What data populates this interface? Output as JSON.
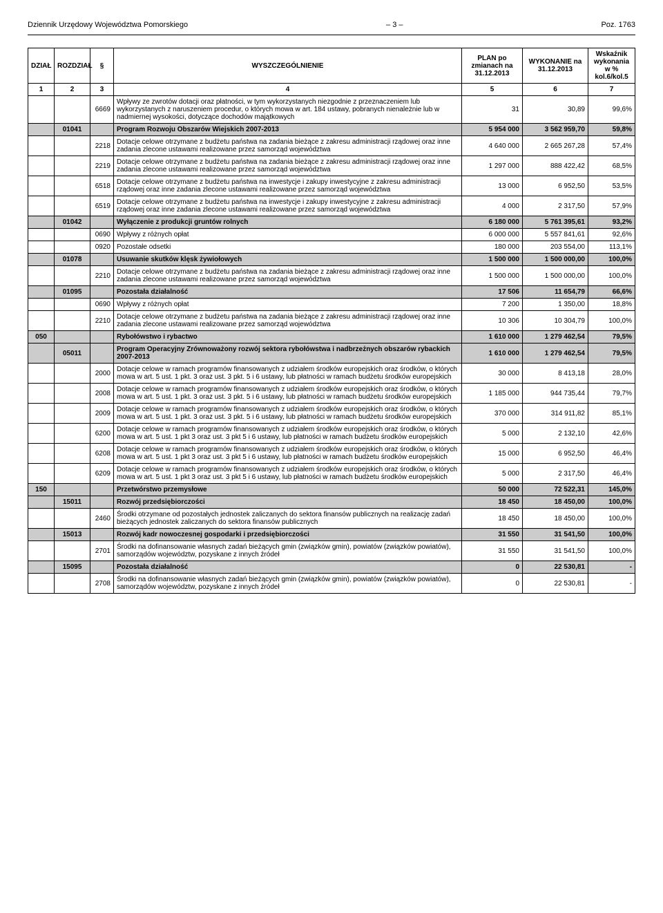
{
  "header": {
    "left": "Dziennik Urzędowy Województwa Pomorskiego",
    "center": "– 3 –",
    "right": "Poz. 1763"
  },
  "table": {
    "headers": {
      "dzial": "DZIAŁ",
      "rozdzial": "ROZDZIAŁ",
      "par": "§",
      "wysz": "WYSZCZEGÓLNIENIE",
      "plan": "PLAN po zmianach na 31.12.2013",
      "wyk": "WYKONANIE na 31.12.2013",
      "wsk": "Wskaźnik wykonania w % kol.6/kol.5"
    },
    "subhead": [
      "1",
      "2",
      "3",
      "4",
      "5",
      "6",
      "7"
    ],
    "rows": [
      {
        "dzial": "",
        "rozdzial": "",
        "par": "6669",
        "desc": "Wpływy ze zwrotów dotacji oraz płatności, w tym wykorzystanych niezgodnie z przeznaczeniem lub wykorzystanych z naruszeniem procedur, o których mowa w art. 184 ustawy, pobranych nienależnie lub w nadmiernej wysokości, dotyczące dochodów majątkowych",
        "plan": "31",
        "wyk": "30,89",
        "wsk": "99,6%",
        "shade": false,
        "bold": false
      },
      {
        "dzial": "",
        "rozdzial": "01041",
        "par": "",
        "desc": "Program Rozwoju Obszarów Wiejskich 2007-2013",
        "plan": "5 954 000",
        "wyk": "3 562 959,70",
        "wsk": "59,8%",
        "shade": true,
        "bold": true
      },
      {
        "dzial": "",
        "rozdzial": "",
        "par": "2218",
        "desc": "Dotacje celowe otrzymane z budżetu państwa na zadania bieżące z zakresu administracji rządowej oraz inne zadania zlecone ustawami realizowane przez samorząd województwa",
        "plan": "4 640 000",
        "wyk": "2 665 267,28",
        "wsk": "57,4%",
        "shade": false,
        "bold": false
      },
      {
        "dzial": "",
        "rozdzial": "",
        "par": "2219",
        "desc": "Dotacje celowe otrzymane z budżetu państwa na zadania bieżące z zakresu administracji rządowej oraz inne zadania zlecone ustawami realizowane przez samorząd województwa",
        "plan": "1 297 000",
        "wyk": "888 422,42",
        "wsk": "68,5%",
        "shade": false,
        "bold": false
      },
      {
        "dzial": "",
        "rozdzial": "",
        "par": "6518",
        "desc": "Dotacje celowe otrzymane z budżetu państwa na inwestycje i zakupy inwestycyjne z zakresu administracji rządowej oraz inne zadania zlecone ustawami realizowane przez samorząd województwa",
        "plan": "13 000",
        "wyk": "6 952,50",
        "wsk": "53,5%",
        "shade": false,
        "bold": false
      },
      {
        "dzial": "",
        "rozdzial": "",
        "par": "6519",
        "desc": "Dotacje celowe otrzymane z budżetu państwa na inwestycje i zakupy inwestycyjne z zakresu administracji rządowej oraz inne zadania zlecone ustawami realizowane przez samorząd województwa",
        "plan": "4 000",
        "wyk": "2 317,50",
        "wsk": "57,9%",
        "shade": false,
        "bold": false
      },
      {
        "dzial": "",
        "rozdzial": "01042",
        "par": "",
        "desc": "Wyłączenie z produkcji gruntów rolnych",
        "plan": "6 180 000",
        "wyk": "5 761 395,61",
        "wsk": "93,2%",
        "shade": true,
        "bold": true
      },
      {
        "dzial": "",
        "rozdzial": "",
        "par": "0690",
        "desc": "Wpływy z różnych opłat",
        "plan": "6 000 000",
        "wyk": "5 557 841,61",
        "wsk": "92,6%",
        "shade": false,
        "bold": false
      },
      {
        "dzial": "",
        "rozdzial": "",
        "par": "0920",
        "desc": "Pozostałe odsetki",
        "plan": "180 000",
        "wyk": "203 554,00",
        "wsk": "113,1%",
        "shade": false,
        "bold": false
      },
      {
        "dzial": "",
        "rozdzial": "01078",
        "par": "",
        "desc": "Usuwanie skutków klęsk żywiołowych",
        "plan": "1 500 000",
        "wyk": "1 500 000,00",
        "wsk": "100,0%",
        "shade": true,
        "bold": true
      },
      {
        "dzial": "",
        "rozdzial": "",
        "par": "2210",
        "desc": "Dotacje celowe otrzymane z budżetu państwa na zadania bieżące z zakresu administracji rządowej oraz inne zadania zlecone ustawami realizowane przez samorząd województwa",
        "plan": "1 500 000",
        "wyk": "1 500 000,00",
        "wsk": "100,0%",
        "shade": false,
        "bold": false
      },
      {
        "dzial": "",
        "rozdzial": "01095",
        "par": "",
        "desc": "Pozostała działalność",
        "plan": "17 506",
        "wyk": "11 654,79",
        "wsk": "66,6%",
        "shade": true,
        "bold": true
      },
      {
        "dzial": "",
        "rozdzial": "",
        "par": "0690",
        "desc": "Wpływy z różnych opłat",
        "plan": "7 200",
        "wyk": "1 350,00",
        "wsk": "18,8%",
        "shade": false,
        "bold": false
      },
      {
        "dzial": "",
        "rozdzial": "",
        "par": "2210",
        "desc": "Dotacje celowe otrzymane z budżetu państwa na zadania bieżące z zakresu administracji rządowej oraz inne zadania zlecone ustawami realizowane przez samorząd województwa",
        "plan": "10 306",
        "wyk": "10 304,79",
        "wsk": "100,0%",
        "shade": false,
        "bold": false
      },
      {
        "dzial": "050",
        "rozdzial": "",
        "par": "",
        "desc": "Rybołówstwo i rybactwo",
        "plan": "1 610 000",
        "wyk": "1 279 462,54",
        "wsk": "79,5%",
        "shade": true,
        "bold": true
      },
      {
        "dzial": "",
        "rozdzial": "05011",
        "par": "",
        "desc": "Program Operacyjny Zrównoważony rozwój sektora rybołówstwa i nadbrzeżnych obszarów rybackich 2007-2013",
        "plan": "1 610 000",
        "wyk": "1 279 462,54",
        "wsk": "79,5%",
        "shade": true,
        "bold": true
      },
      {
        "dzial": "",
        "rozdzial": "",
        "par": "2000",
        "desc": "Dotacje celowe w ramach programów finansowanych z udziałem środków europejskich oraz środków, o których mowa w art. 5 ust. 1 pkt. 3 oraz ust. 3 pkt. 5 i 6 ustawy, lub płatności w ramach budżetu środków europejskich",
        "plan": "30 000",
        "wyk": "8 413,18",
        "wsk": "28,0%",
        "shade": false,
        "bold": false
      },
      {
        "dzial": "",
        "rozdzial": "",
        "par": "2008",
        "desc": "Dotacje celowe w ramach programów finansowanych z udziałem środków europejskich oraz środków, o których mowa w art. 5 ust. 1 pkt. 3 oraz ust. 3 pkt. 5 i 6 ustawy, lub płatności w ramach budżetu środków europejskich",
        "plan": "1 185 000",
        "wyk": "944 735,44",
        "wsk": "79,7%",
        "shade": false,
        "bold": false
      },
      {
        "dzial": "",
        "rozdzial": "",
        "par": "2009",
        "desc": "Dotacje celowe w ramach programów finansowanych z udziałem środków europejskich oraz środków, o których mowa w art. 5 ust. 1 pkt. 3 oraz ust. 3 pkt. 5 i 6 ustawy, lub płatności w ramach budżetu środków europejskich",
        "plan": "370 000",
        "wyk": "314 911,82",
        "wsk": "85,1%",
        "shade": false,
        "bold": false
      },
      {
        "dzial": "",
        "rozdzial": "",
        "par": "6200",
        "desc": "Dotacje celowe w ramach programów finansowanych z udziałem środków europejskich oraz środków, o których mowa w art. 5 ust. 1 pkt 3 oraz ust. 3 pkt 5 i 6 ustawy, lub płatności w ramach budżetu środków europejskich",
        "plan": "5 000",
        "wyk": "2 132,10",
        "wsk": "42,6%",
        "shade": false,
        "bold": false
      },
      {
        "dzial": "",
        "rozdzial": "",
        "par": "6208",
        "desc": "Dotacje celowe w ramach programów finansowanych z udziałem środków europejskich oraz środków, o których mowa w art. 5 ust. 1 pkt 3 oraz ust. 3 pkt 5 i 6 ustawy, lub płatności w ramach budżetu środków europejskich",
        "plan": "15 000",
        "wyk": "6 952,50",
        "wsk": "46,4%",
        "shade": false,
        "bold": false
      },
      {
        "dzial": "",
        "rozdzial": "",
        "par": "6209",
        "desc": "Dotacje celowe w ramach programów finansowanych z udziałem środków europejskich oraz środków, o których mowa w art. 5 ust. 1 pkt 3 oraz ust. 3 pkt 5 i 6 ustawy, lub płatności w ramach budżetu środków europejskich",
        "plan": "5 000",
        "wyk": "2 317,50",
        "wsk": "46,4%",
        "shade": false,
        "bold": false
      },
      {
        "dzial": "150",
        "rozdzial": "",
        "par": "",
        "desc": "Przetwórstwo przemysłowe",
        "plan": "50 000",
        "wyk": "72 522,31",
        "wsk": "145,0%",
        "shade": true,
        "bold": true
      },
      {
        "dzial": "",
        "rozdzial": "15011",
        "par": "",
        "desc": "Rozwój przedsiębiorczości",
        "plan": "18 450",
        "wyk": "18 450,00",
        "wsk": "100,0%",
        "shade": true,
        "bold": true
      },
      {
        "dzial": "",
        "rozdzial": "",
        "par": "2460",
        "desc": "Środki otrzymane od pozostałych jednostek zaliczanych do sektora finansów publicznych na realizację zadań bieżących jednostek zaliczanych do sektora finansów publicznych",
        "plan": "18 450",
        "wyk": "18 450,00",
        "wsk": "100,0%",
        "shade": false,
        "bold": false
      },
      {
        "dzial": "",
        "rozdzial": "15013",
        "par": "",
        "desc": "Rozwój kadr nowoczesnej gospodarki i przedsiębiorczości",
        "plan": "31 550",
        "wyk": "31 541,50",
        "wsk": "100,0%",
        "shade": true,
        "bold": true
      },
      {
        "dzial": "",
        "rozdzial": "",
        "par": "2701",
        "desc": "Środki na dofinansowanie własnych zadań bieżących gmin (związków gmin), powiatów (związków powiatów), samorządów województw, pozyskane z innych źródeł",
        "plan": "31 550",
        "wyk": "31 541,50",
        "wsk": "100,0%",
        "shade": false,
        "bold": false
      },
      {
        "dzial": "",
        "rozdzial": "15095",
        "par": "",
        "desc": "Pozostała działalność",
        "plan": "0",
        "wyk": "22 530,81",
        "wsk": "-",
        "shade": true,
        "bold": true
      },
      {
        "dzial": "",
        "rozdzial": "",
        "par": "2708",
        "desc": "Środki na dofinansowanie własnych zadań bieżących gmin (związków gmin), powiatów (związków powiatów), samorządów województw, pozyskane z innych źródeł",
        "plan": "0",
        "wyk": "22 530,81",
        "wsk": "-",
        "shade": false,
        "bold": false
      }
    ]
  }
}
